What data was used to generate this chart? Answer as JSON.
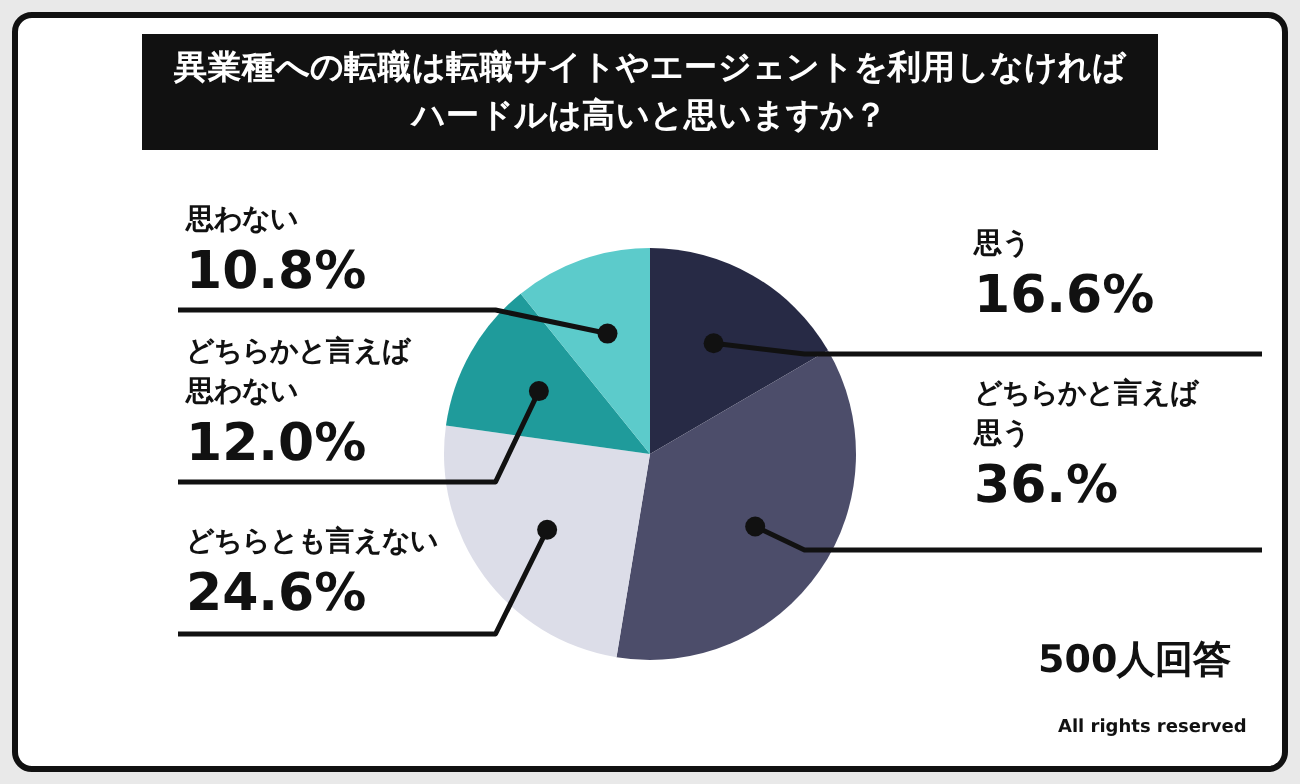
{
  "chart_data": {
    "type": "pie",
    "title": "異業種への転職は転職サイトやエージェントを利用しなければハードルは高いと思いますか？",
    "categories": [
      "思う",
      "どちらかと言えば思う",
      "どちらとも言えない",
      "どちらかと言えば思わない",
      "思わない"
    ],
    "values": [
      16.6,
      36,
      24.6,
      12,
      10.8
    ],
    "value_labels": [
      "16.6%",
      "36.%",
      "24.6%",
      "12.0%",
      "10.8%"
    ],
    "colors": [
      "#272a45",
      "#4c4d6a",
      "#dcdde8",
      "#1f9b9b",
      "#5ccbcb"
    ],
    "annotations": [
      "500人回答",
      "All rights reserved"
    ]
  }
}
